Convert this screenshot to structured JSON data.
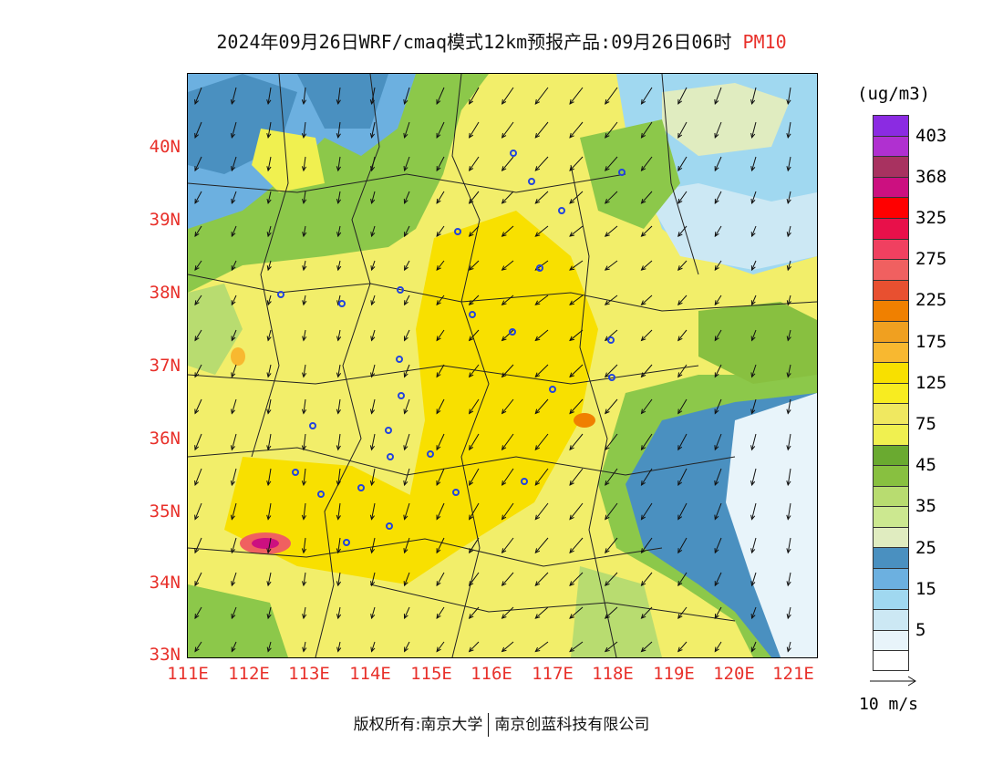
{
  "title": {
    "main": "2024年09月26日WRF/cmaq模式12km预报产品:09月26日06时",
    "pollutant": "PM10"
  },
  "map": {
    "latitude_labels": [
      "40N",
      "39N",
      "38N",
      "37N",
      "36N",
      "35N",
      "34N",
      "33N"
    ],
    "longitude_labels": [
      "111E",
      "112E",
      "113E",
      "114E",
      "115E",
      "116E",
      "117E",
      "118E",
      "119E",
      "120E",
      "121E"
    ],
    "axis_color": "#e8302a",
    "monitoring_station_marker": "station-circle-icon"
  },
  "legend": {
    "unit": "(ug/m3)",
    "labels": [
      "403",
      "368",
      "325",
      "275",
      "225",
      "175",
      "125",
      "75",
      "45",
      "35",
      "25",
      "15",
      "5"
    ],
    "colors": [
      "#8b2be2",
      "#b030d0",
      "#a83260",
      "#cc1080",
      "#ff0000",
      "#e8104a",
      "#f04060",
      "#f06060",
      "#e85030",
      "#f08000",
      "#f0a020",
      "#f8b830",
      "#f8e000",
      "#f8ec20",
      "#f0e860",
      "#f0f050",
      "#6aaa30",
      "#88c040",
      "#b8dc70",
      "#cce890",
      "#e0ecc0",
      "#4a90c0",
      "#6cb0e0",
      "#a0d8f0",
      "#cce8f4",
      "#e8f4fa",
      "#ffffff"
    ]
  },
  "wind_reference": {
    "label": "10 m/s"
  },
  "footer": {
    "copyright": "版权所有:南京大学",
    "company": "南京创蓝科技有限公司"
  }
}
